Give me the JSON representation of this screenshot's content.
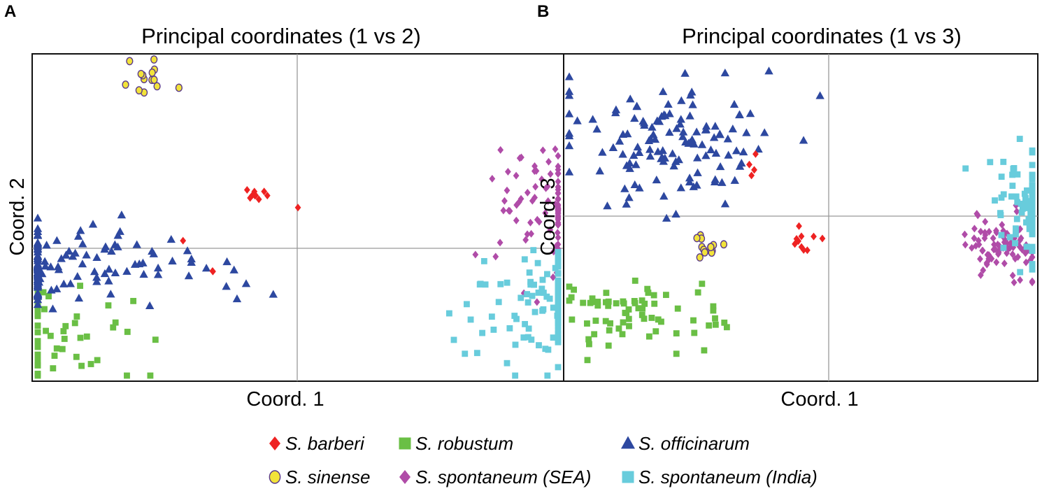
{
  "legend": {
    "items": [
      {
        "name": "S. barberi",
        "marker": "diamond",
        "color": "#ee2222"
      },
      {
        "name": "S. robustum",
        "marker": "square",
        "color": "#6abf45"
      },
      {
        "name": "S. officinarum",
        "marker": "triangle",
        "color": "#2d48a0"
      },
      {
        "name": "S. sinense",
        "marker": "circle",
        "color": "#f2e33a"
      },
      {
        "name": "S. spontaneum (SEA)",
        "marker": "diamond",
        "color": "#b04ca8"
      },
      {
        "name": "S. spontaneum (India)",
        "marker": "square",
        "color": "#68ccdc"
      }
    ]
  },
  "chart_data": [
    {
      "panel": "A",
      "type": "scatter",
      "title": "Principal coordinates (1 vs 2)",
      "xlabel": "Coord. 1",
      "ylabel": "Coord. 2",
      "xlim": [
        -1,
        1
      ],
      "ylim": [
        -1,
        1
      ],
      "grid": false,
      "reference_lines": {
        "x": 0,
        "y": 0
      },
      "series": [
        {
          "name": "S. barberi",
          "clusters": [
            {
              "cx": -0.15,
              "cy": 0.32,
              "sx": 0.03,
              "sy": 0.02,
              "n": 9
            },
            {
              "cx": -0.45,
              "cy": 0.04,
              "sx": 0.01,
              "sy": 0.01,
              "n": 1
            },
            {
              "cx": -0.31,
              "cy": -0.14,
              "sx": 0.01,
              "sy": 0.01,
              "n": 2
            },
            {
              "cx": 0.0,
              "cy": 0.25,
              "sx": 0.01,
              "sy": 0.01,
              "n": 1
            }
          ]
        },
        {
          "name": "S. robustum",
          "clusters": [
            {
              "cx": -1.35,
              "cy": -0.33,
              "sx": 0.1,
              "sy": 0.1,
              "n": 18
            },
            {
              "cx": -0.9,
              "cy": -0.58,
              "sx": 0.15,
              "sy": 0.15,
              "n": 40
            }
          ]
        },
        {
          "name": "S. officinarum",
          "clusters": [
            {
              "cx": -0.85,
              "cy": -0.1,
              "sx": 0.35,
              "sy": 0.12,
              "n": 130
            }
          ]
        },
        {
          "name": "S. sinense",
          "clusters": [
            {
              "cx": -0.57,
              "cy": 1.05,
              "sx": 0.04,
              "sy": 0.05,
              "n": 14
            }
          ]
        },
        {
          "name": "S. spontaneum (SEA)",
          "clusters": [
            {
              "cx": 0.97,
              "cy": 0.23,
              "sx": 0.12,
              "sy": 0.2,
              "n": 90
            }
          ]
        },
        {
          "name": "S. spontaneum (India)",
          "clusters": [
            {
              "cx": 0.95,
              "cy": -0.33,
              "sx": 0.18,
              "sy": 0.18,
              "n": 110
            }
          ]
        }
      ]
    },
    {
      "panel": "B",
      "type": "scatter",
      "title": "Principal coordinates (1 vs 3)",
      "xlabel": "Coord. 1",
      "ylabel": "Coord. 3",
      "xlim": [
        -1,
        1
      ],
      "ylim": [
        -1,
        1
      ],
      "grid": false,
      "reference_lines": {
        "x": 0,
        "y": 0
      },
      "series": [
        {
          "name": "S. barberi",
          "clusters": [
            {
              "cx": -0.12,
              "cy": -0.15,
              "sx": 0.03,
              "sy": 0.03,
              "n": 10
            },
            {
              "cx": -0.33,
              "cy": 0.33,
              "sx": 0.05,
              "sy": 0.05,
              "n": 4
            }
          ]
        },
        {
          "name": "S. robustum",
          "clusters": [
            {
              "cx": -0.83,
              "cy": -0.6,
              "sx": 0.18,
              "sy": 0.12,
              "n": 70
            }
          ]
        },
        {
          "name": "S. officinarum",
          "clusters": [
            {
              "cx": -0.67,
              "cy": 0.48,
              "sx": 0.22,
              "sy": 0.2,
              "n": 130
            }
          ]
        },
        {
          "name": "S. sinense",
          "clusters": [
            {
              "cx": -0.5,
              "cy": -0.2,
              "sx": 0.04,
              "sy": 0.03,
              "n": 14
            }
          ]
        },
        {
          "name": "S. spontaneum (SEA)",
          "clusters": [
            {
              "cx": 0.73,
              "cy": -0.17,
              "sx": 0.08,
              "sy": 0.1,
              "n": 90
            }
          ]
        },
        {
          "name": "S. spontaneum (India)",
          "clusters": [
            {
              "cx": 0.86,
              "cy": 0.05,
              "sx": 0.1,
              "sy": 0.15,
              "n": 110
            }
          ]
        }
      ]
    }
  ]
}
